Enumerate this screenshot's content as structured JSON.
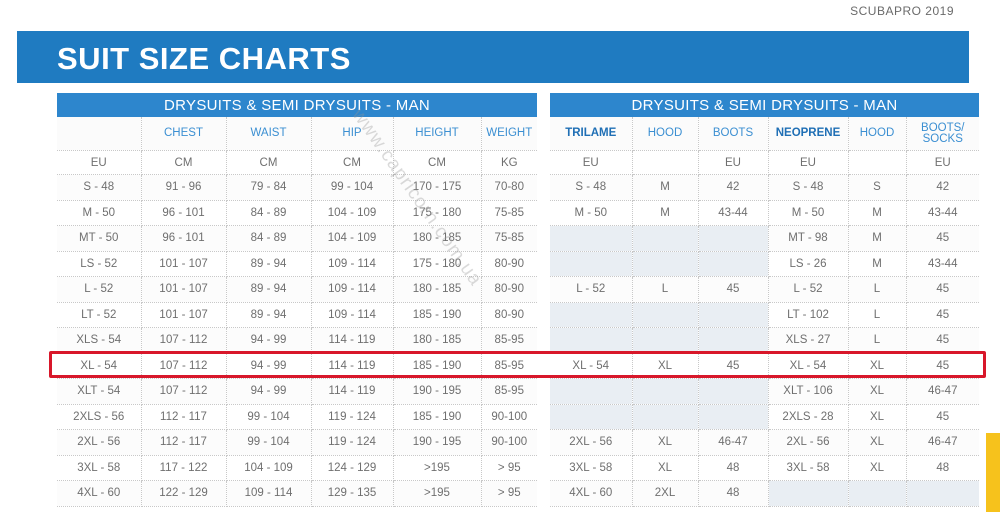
{
  "brand": "SCUBAPRO 2019",
  "title": "SUIT SIZE CHARTS",
  "watermark": "www.capricorn.com.ua",
  "left_table": {
    "title": "DRYSUITS & SEMI DRYSUITS - MAN",
    "headers": [
      "",
      "CHEST",
      "WAIST",
      "HIP",
      "HEIGHT",
      "WEIGHT"
    ],
    "units": [
      "EU",
      "CM",
      "CM",
      "CM",
      "CM",
      "KG"
    ],
    "rows": [
      [
        "S - 48",
        "91 - 96",
        "79 - 84",
        "99 - 104",
        "170 - 175",
        "70-80"
      ],
      [
        "M - 50",
        "96 - 101",
        "84 - 89",
        "104 - 109",
        "175 - 180",
        "75-85"
      ],
      [
        "MT - 50",
        "96 - 101",
        "84 - 89",
        "104 - 109",
        "180 - 185",
        "75-85"
      ],
      [
        "LS - 52",
        "101 - 107",
        "89 - 94",
        "109 - 114",
        "175 - 180",
        "80-90"
      ],
      [
        "L - 52",
        "101 - 107",
        "89 - 94",
        "109 - 114",
        "180 - 185",
        "80-90"
      ],
      [
        "LT - 52",
        "101 - 107",
        "89 - 94",
        "109 - 114",
        "185 - 190",
        "80-90"
      ],
      [
        "XLS - 54",
        "107 - 112",
        "94 - 99",
        "114 - 119",
        "180 - 185",
        "85-95"
      ],
      [
        "XL - 54",
        "107 - 112",
        "94 - 99",
        "114 - 119",
        "185 - 190",
        "85-95"
      ],
      [
        "XLT - 54",
        "107 - 112",
        "94 - 99",
        "114 - 119",
        "190 - 195",
        "85-95"
      ],
      [
        "2XLS - 56",
        "112 - 117",
        "99 - 104",
        "119 - 124",
        "185 - 190",
        "90-100"
      ],
      [
        "2XL - 56",
        "112 - 117",
        "99 - 104",
        "119 - 124",
        "190 - 195",
        "90-100"
      ],
      [
        "3XL - 58",
        "117 - 122",
        "104 - 109",
        "124 - 129",
        ">195",
        "> 95"
      ],
      [
        "4XL - 60",
        "122 - 129",
        "109 - 114",
        "129 - 135",
        ">195",
        "> 95"
      ]
    ]
  },
  "right_table": {
    "title": "DRYSUITS & SEMI DRYSUITS - MAN",
    "headers": [
      "TRILAME",
      "HOOD",
      "BOOTS",
      "NEOPRENE",
      "HOOD",
      "BOOTS/\nSOCKS"
    ],
    "units": [
      "EU",
      "",
      "EU",
      "EU",
      "",
      "EU"
    ],
    "rows": [
      [
        "S - 48",
        "M",
        "42",
        "S - 48",
        "S",
        "42"
      ],
      [
        "M - 50",
        "M",
        "43-44",
        "M - 50",
        "M",
        "43-44"
      ],
      [
        "",
        "",
        "",
        "MT - 98",
        "M",
        "45"
      ],
      [
        "",
        "",
        "",
        "LS - 26",
        "M",
        "43-44"
      ],
      [
        "L - 52",
        "L",
        "45",
        "L - 52",
        "L",
        "45"
      ],
      [
        "",
        "",
        "",
        "LT - 102",
        "L",
        "45"
      ],
      [
        "",
        "",
        "",
        "XLS - 27",
        "L",
        "45"
      ],
      [
        "XL - 54",
        "XL",
        "45",
        "XL - 54",
        "XL",
        "45"
      ],
      [
        "",
        "",
        "",
        "XLT - 106",
        "XL",
        "46-47"
      ],
      [
        "",
        "",
        "",
        "2XLS - 28",
        "XL",
        "45"
      ],
      [
        "2XL - 56",
        "XL",
        "46-47",
        "2XL - 56",
        "XL",
        "46-47"
      ],
      [
        "3XL - 58",
        "XL",
        "48",
        "3XL - 58",
        "XL",
        "48"
      ],
      [
        "4XL - 60",
        "2XL",
        "48",
        "",
        "",
        ""
      ]
    ]
  },
  "colors": {
    "banner": "#1f7bc1",
    "table_title": "#2d86cd",
    "header_text": "#3b8fd2",
    "highlight": "#d8172a",
    "side_tab": "#f6c21c"
  }
}
